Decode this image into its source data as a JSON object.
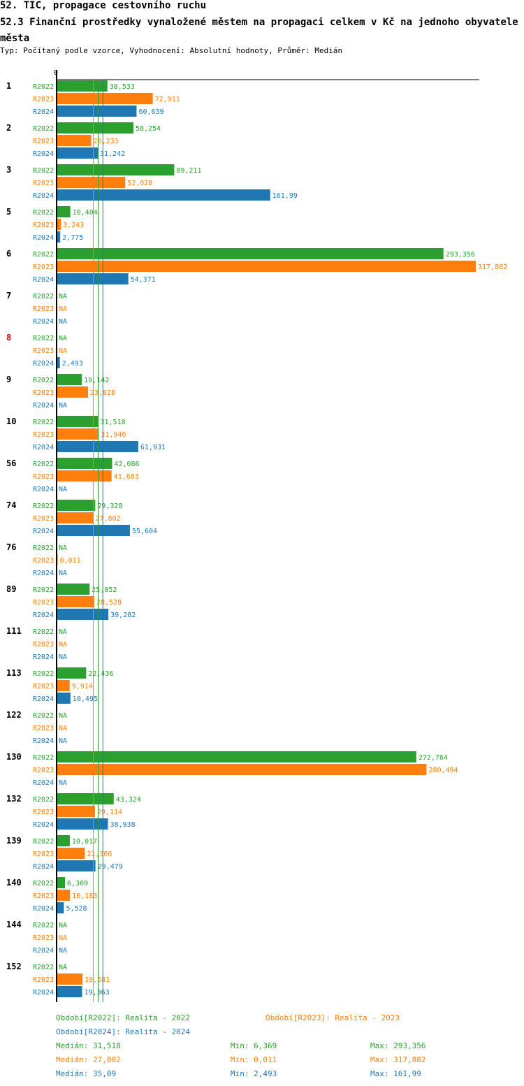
{
  "header": {
    "title": "52. TIC, propagace cestovního ruchu",
    "subtitle": "52.3 Finanční prostředky vynaložené městem na propagaci celkem v Kč na jednoho obyvatele města",
    "type_line": "Typ: Počítaný podle vzorce, Vyhodnocení: Absolutní hodnoty, Průměr: Medián"
  },
  "colors": {
    "R2022": "#2ca02c",
    "R2023": "#ff7f0e",
    "R2024": "#1f77b4",
    "highlight": "#cc0000"
  },
  "chart_data": {
    "type": "bar",
    "orientation": "horizontal",
    "axis_zero_label": "0",
    "xlim": [
      0,
      317.882
    ],
    "series_names": [
      "R2022",
      "R2023",
      "R2024"
    ],
    "groups": [
      {
        "label": "1",
        "values": [
          38.533,
          72.911,
          60.639
        ],
        "texts": [
          "38,533",
          "72,911",
          "60,639"
        ]
      },
      {
        "label": "2",
        "values": [
          58.254,
          26.233,
          31.242
        ],
        "texts": [
          "58,254",
          "26,233",
          "31,242"
        ]
      },
      {
        "label": "3",
        "values": [
          89.211,
          52.028,
          161.99
        ],
        "texts": [
          "89,211",
          "52,028",
          "161,99"
        ]
      },
      {
        "label": "5",
        "values": [
          10.404,
          3.243,
          2.775
        ],
        "texts": [
          "10,404",
          "3,243",
          "2,775"
        ]
      },
      {
        "label": "6",
        "values": [
          293.356,
          317.882,
          54.371
        ],
        "texts": [
          "293,356",
          "317,882",
          "54,371"
        ]
      },
      {
        "label": "7",
        "values": [
          null,
          null,
          null
        ],
        "texts": [
          "NA",
          "NA",
          "NA"
        ]
      },
      {
        "label": "8",
        "highlight": true,
        "values": [
          null,
          null,
          2.493
        ],
        "texts": [
          "NA",
          "NA",
          "2,493"
        ]
      },
      {
        "label": "9",
        "values": [
          19.142,
          23.828,
          null
        ],
        "texts": [
          "19,142",
          "23,828",
          "NA"
        ]
      },
      {
        "label": "10",
        "values": [
          31.518,
          31.946,
          61.931
        ],
        "texts": [
          "31,518",
          "31,946",
          "61,931"
        ]
      },
      {
        "label": "56",
        "values": [
          42.086,
          41.683,
          null
        ],
        "texts": [
          "42,086",
          "41,683",
          "NA"
        ]
      },
      {
        "label": "74",
        "values": [
          29.328,
          27.802,
          55.604
        ],
        "texts": [
          "29,328",
          "27,802",
          "55,604"
        ]
      },
      {
        "label": "76",
        "values": [
          null,
          0.011,
          null
        ],
        "texts": [
          "NA",
          "0,011",
          "NA"
        ]
      },
      {
        "label": "89",
        "values": [
          25.052,
          28.528,
          39.282
        ],
        "texts": [
          "25,052",
          "28,528",
          "39,282"
        ]
      },
      {
        "label": "111",
        "values": [
          null,
          null,
          null
        ],
        "texts": [
          "NA",
          "NA",
          "NA"
        ]
      },
      {
        "label": "113",
        "values": [
          22.436,
          9.914,
          10.495
        ],
        "texts": [
          "22,436",
          "9,914",
          "10,495"
        ]
      },
      {
        "label": "122",
        "values": [
          null,
          null,
          null
        ],
        "texts": [
          "NA",
          "NA",
          "NA"
        ]
      },
      {
        "label": "130",
        "values": [
          272.764,
          280.494,
          null
        ],
        "texts": [
          "272,764",
          "280,494",
          "NA"
        ]
      },
      {
        "label": "132",
        "values": [
          43.324,
          29.114,
          38.938
        ],
        "texts": [
          "43,324",
          "29,114",
          "38,938"
        ]
      },
      {
        "label": "139",
        "values": [
          10.017,
          21.366,
          29.479
        ],
        "texts": [
          "10,017",
          "21,366",
          "29,479"
        ]
      },
      {
        "label": "140",
        "values": [
          6.369,
          10.183,
          5.528
        ],
        "texts": [
          "6,369",
          "10,183",
          "5,528"
        ]
      },
      {
        "label": "144",
        "values": [
          null,
          null,
          null
        ],
        "texts": [
          "NA",
          "NA",
          "NA"
        ]
      },
      {
        "label": "152",
        "values": [
          null,
          19.681,
          19.363
        ],
        "texts": [
          "NA",
          "19,681",
          "19,363"
        ]
      }
    ],
    "median_lines": {
      "R2022": 31.518,
      "R2023": 27.802,
      "R2024": 35.09
    }
  },
  "legend": {
    "r2022": "Období[R2022]: Realita - 2022",
    "r2023": "Období[R2023]: Realita - 2023",
    "r2024": "Období[R2024]: Realita - 2024"
  },
  "stats": {
    "r2022": {
      "median": "Medián: 31,518",
      "min": "Min: 6,369",
      "max": "Max: 293,356"
    },
    "r2023": {
      "median": "Medián: 27,802",
      "min": "Min: 0,011",
      "max": "Max: 317,882"
    },
    "r2024": {
      "median": "Medián: 35,09",
      "min": "Min: 2,493",
      "max": "Max: 161,99"
    }
  }
}
